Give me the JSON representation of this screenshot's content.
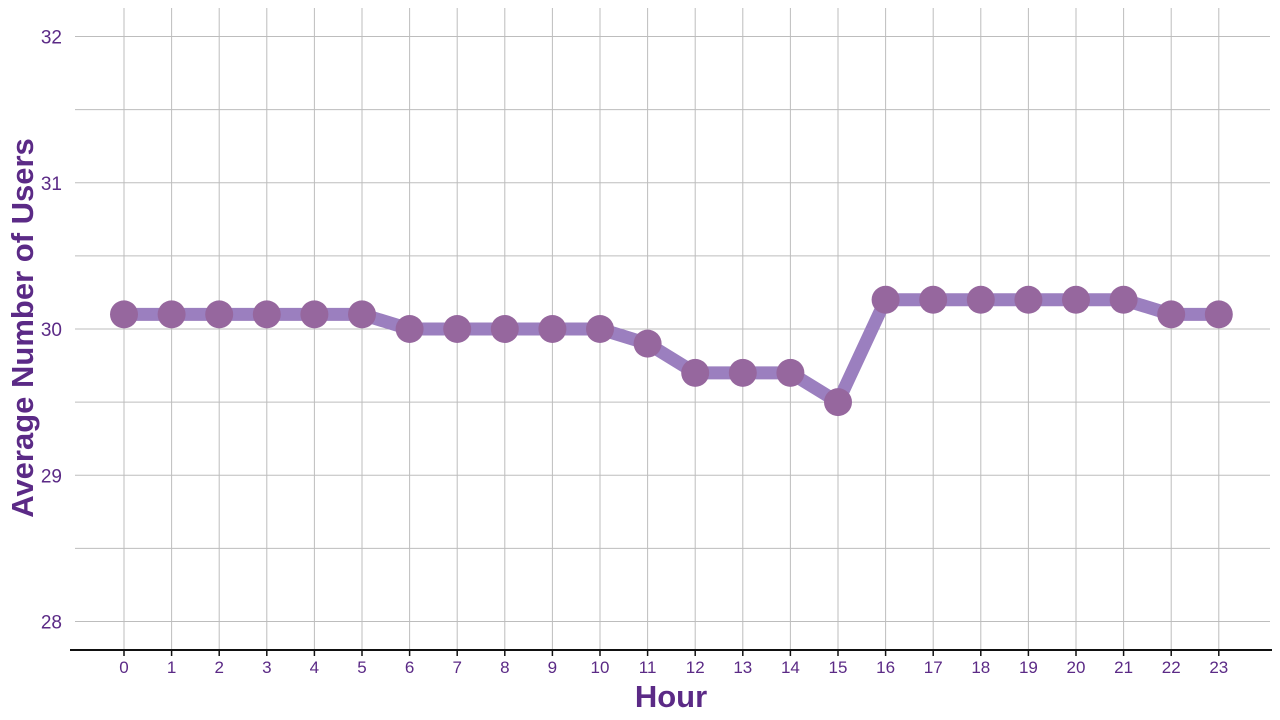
{
  "chart_data": {
    "type": "line",
    "title": "",
    "xlabel": "Hour",
    "ylabel": "Average Number of Users",
    "x": [
      0,
      1,
      2,
      3,
      4,
      5,
      6,
      7,
      8,
      9,
      10,
      11,
      12,
      13,
      14,
      15,
      16,
      17,
      18,
      19,
      20,
      21,
      22,
      23
    ],
    "x_tick_labels": [
      "0",
      "1",
      "2",
      "3",
      "4",
      "5",
      "6",
      "7",
      "8",
      "9",
      "10",
      "11",
      "12",
      "13",
      "14",
      "15",
      "16",
      "17",
      "18",
      "19",
      "20",
      "21",
      "22",
      "23"
    ],
    "series": [
      {
        "values": [
          30.1,
          30.1,
          30.1,
          30.1,
          30.1,
          30.1,
          30.0,
          30.0,
          30.0,
          30.0,
          30.0,
          29.9,
          29.7,
          29.7,
          29.7,
          29.5,
          30.2,
          30.2,
          30.2,
          30.2,
          30.2,
          30.2,
          30.1,
          30.1
        ]
      }
    ],
    "y_ticks": [
      28,
      29,
      30,
      31,
      32
    ],
    "y_tick_labels": [
      "28",
      "29",
      "30",
      "31",
      "32"
    ],
    "ylim": [
      27.8,
      32.2
    ],
    "grid": true,
    "colors": {
      "line": "#9b7fbf",
      "marker": "#96679e",
      "text": "#5b2a86",
      "grid": "#bdbdbd",
      "axis": "#111111"
    }
  }
}
